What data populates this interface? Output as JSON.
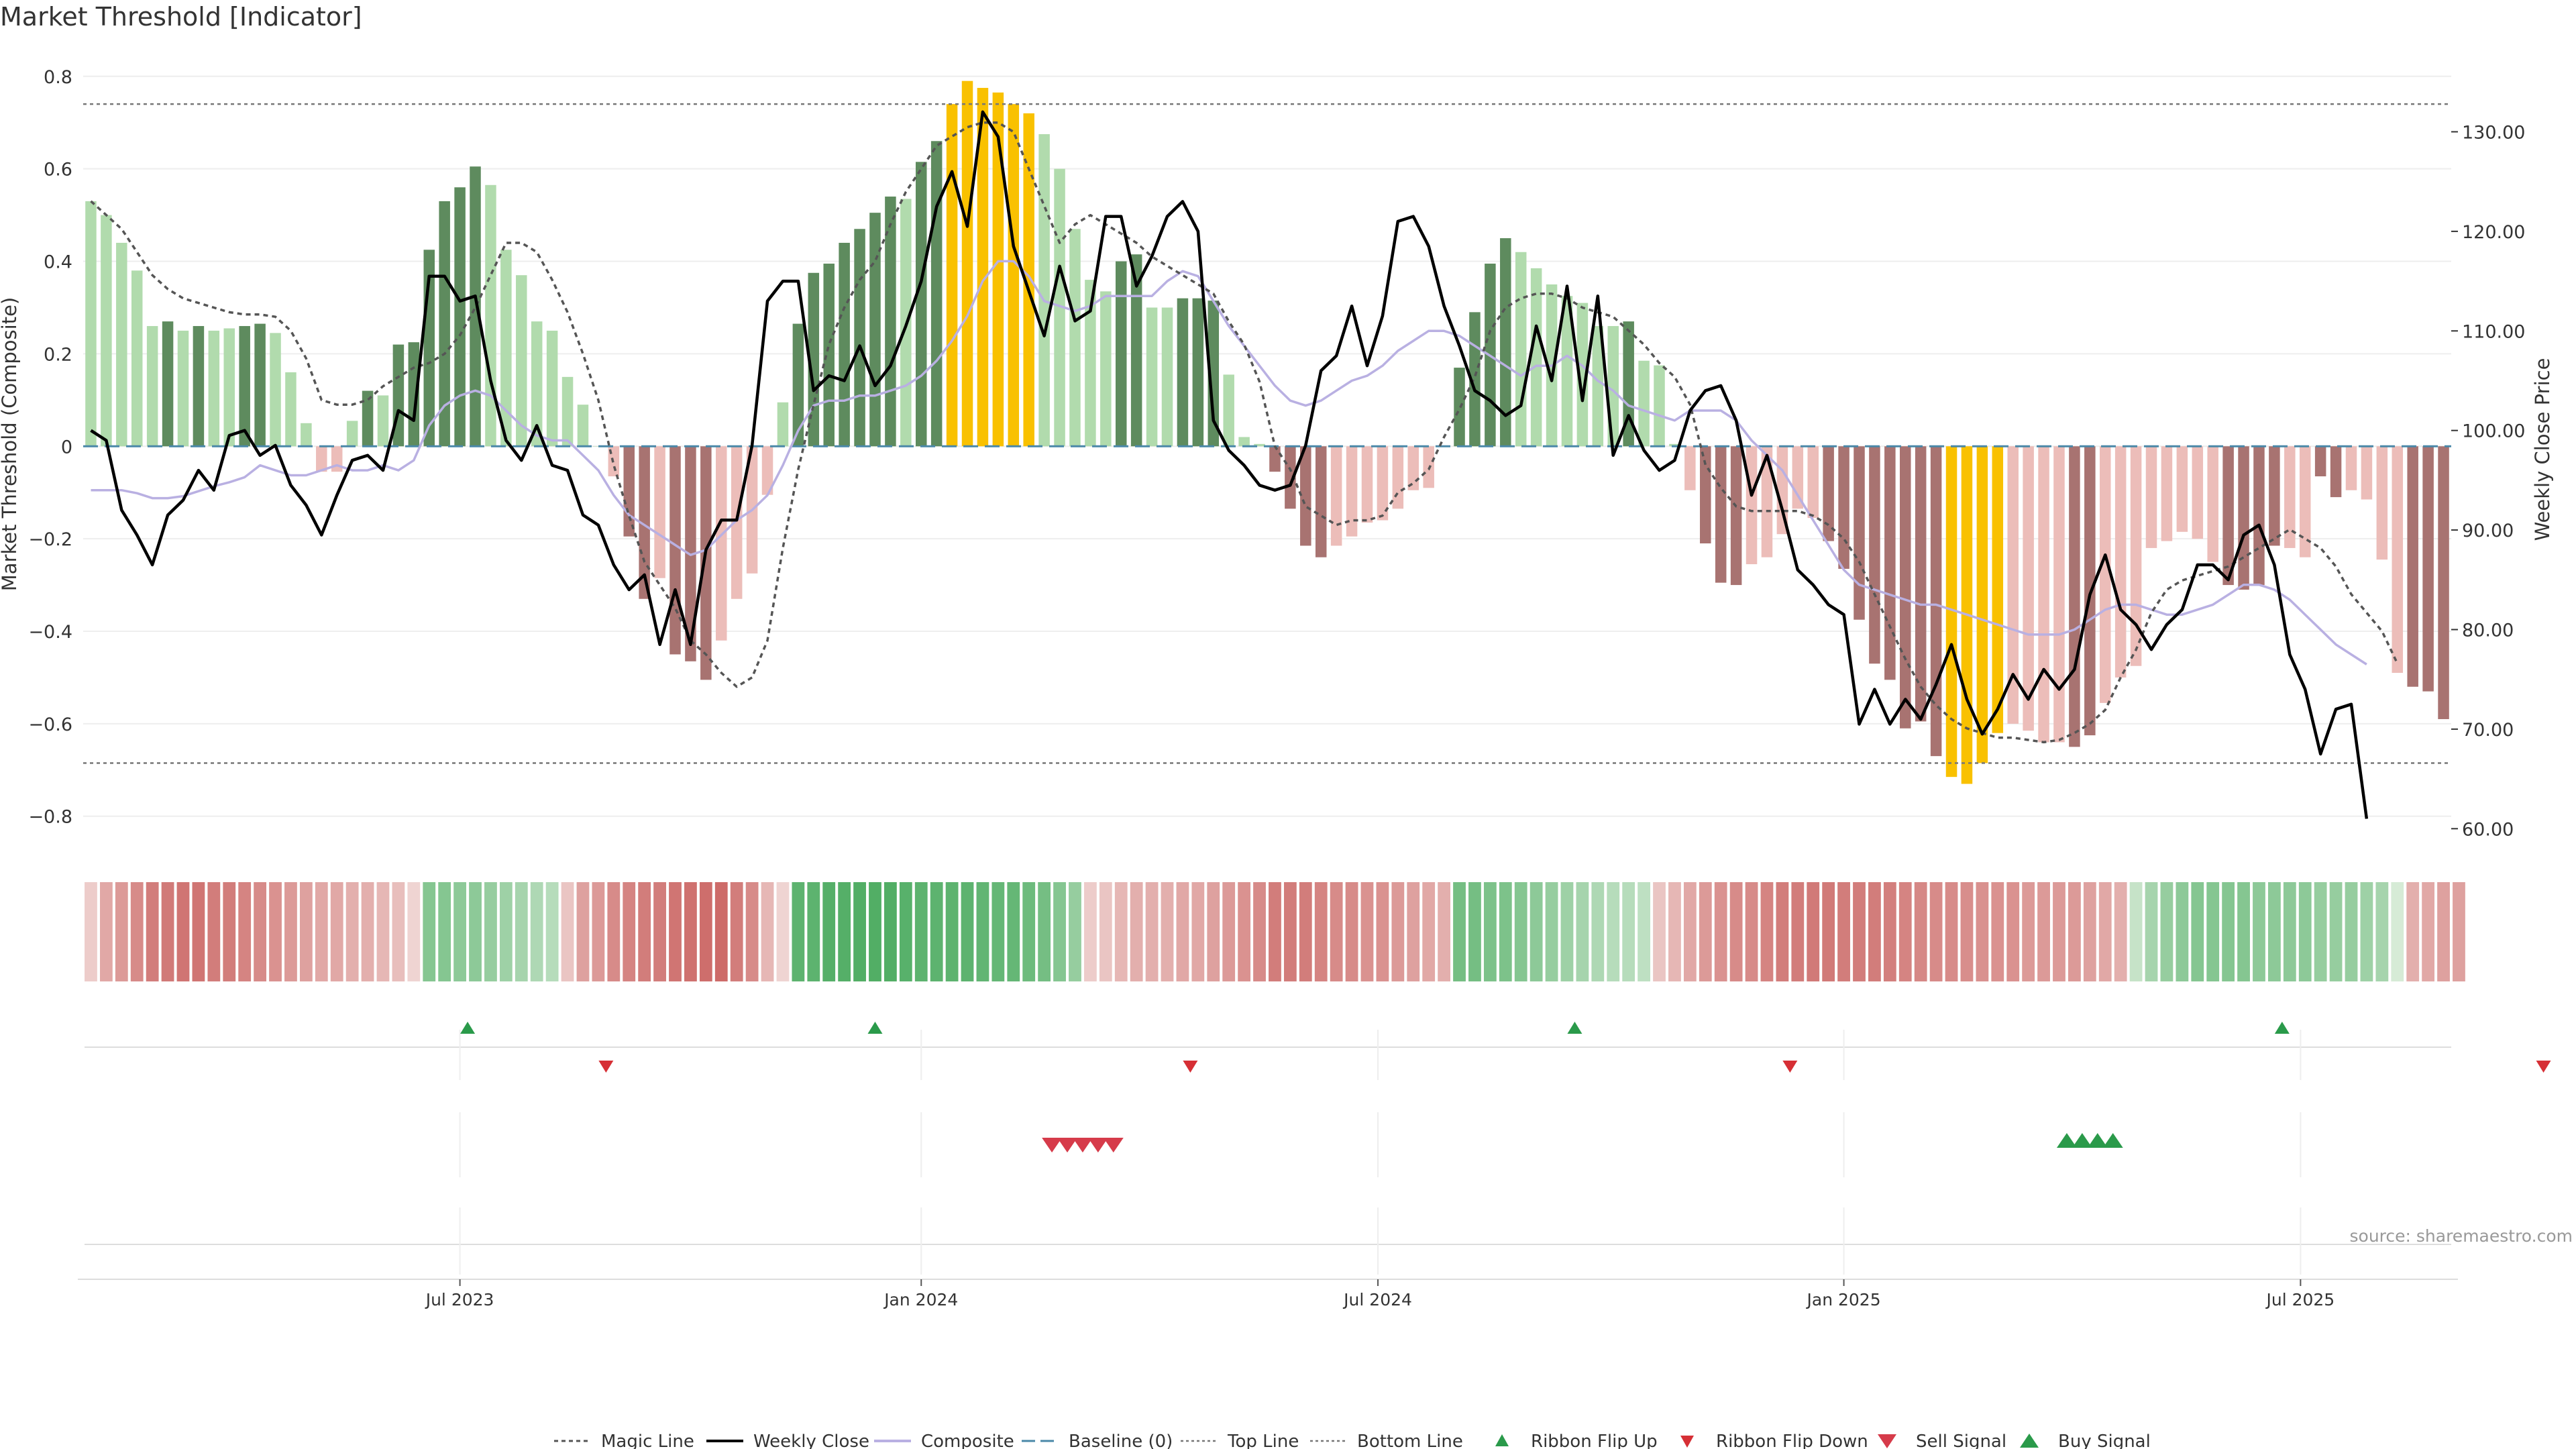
{
  "chart_data": {
    "type": "bar",
    "title": "Market Threshold [Indicator]",
    "ylabel_left": "Market Threshold (Composite)",
    "ylabel_right": "Weekly Close Price",
    "ylim_left": [
      -0.87,
      0.82
    ],
    "ylim_right": [
      58.0,
      136.5
    ],
    "y_ticks_left": [
      "0.8",
      "0.6",
      "0.4",
      "0.2",
      "0",
      "−0.2",
      "−0.4",
      "−0.6",
      "−0.8"
    ],
    "y_tick_values_left": [
      0.8,
      0.6,
      0.4,
      0.2,
      0,
      -0.2,
      -0.4,
      -0.6,
      -0.8
    ],
    "y_ticks_right": [
      "130.00",
      "120.00",
      "110.00",
      "100.00",
      "90.00",
      "80.00",
      "70.00",
      "60.00"
    ],
    "y_tick_values_right": [
      130,
      120,
      110,
      100,
      90,
      80,
      70,
      60
    ],
    "x_ticks": [
      "Jul 2023",
      "Jan 2024",
      "Jul 2024",
      "Jan 2025",
      "Jul 2025"
    ],
    "x_tick_weeks": [
      24.5,
      54.5,
      84.2,
      114.5,
      144.2
    ],
    "top_line": 0.74,
    "bottom_line": -0.685,
    "composite_bars": [
      0.53,
      0.5,
      0.44,
      0.38,
      0.26,
      0.27,
      0.25,
      0.26,
      0.25,
      0.255,
      0.26,
      0.265,
      0.245,
      0.16,
      0.05,
      -0.055,
      -0.055,
      0.055,
      0.12,
      0.11,
      0.22,
      0.225,
      0.425,
      0.53,
      0.56,
      0.605,
      0.565,
      0.425,
      0.37,
      0.27,
      0.25,
      0.15,
      0.09,
      0.0,
      -0.065,
      -0.195,
      -0.33,
      -0.285,
      -0.45,
      -0.465,
      -0.505,
      -0.42,
      -0.33,
      -0.275,
      -0.105,
      0.095,
      0.265,
      0.375,
      0.395,
      0.44,
      0.47,
      0.505,
      0.54,
      0.535,
      0.615,
      0.66,
      0.74,
      0.79,
      0.775,
      0.765,
      0.74,
      0.72,
      0.675,
      0.6,
      0.47,
      0.36,
      0.335,
      0.4,
      0.415,
      0.3,
      0.3,
      0.32,
      0.32,
      0.315,
      0.155,
      0.02,
      0.005,
      -0.055,
      -0.135,
      -0.215,
      -0.24,
      -0.215,
      -0.195,
      -0.165,
      -0.16,
      -0.135,
      -0.095,
      -0.09,
      0.0,
      0.17,
      0.29,
      0.395,
      0.45,
      0.42,
      0.385,
      0.35,
      0.325,
      0.31,
      0.26,
      0.26,
      0.27,
      0.185,
      0.175,
      0.005,
      -0.095,
      -0.21,
      -0.295,
      -0.3,
      -0.255,
      -0.24,
      -0.19,
      -0.135,
      -0.155,
      -0.205,
      -0.265,
      -0.375,
      -0.47,
      -0.505,
      -0.61,
      -0.595,
      -0.67,
      -0.715,
      -0.73,
      -0.685,
      -0.62,
      -0.6,
      -0.615,
      -0.64,
      -0.64,
      -0.65,
      -0.625,
      -0.555,
      -0.5,
      -0.475,
      -0.22,
      -0.205,
      -0.185,
      -0.2,
      -0.25,
      -0.3,
      -0.31,
      -0.3,
      -0.215,
      -0.22,
      -0.24,
      -0.065,
      -0.11,
      -0.095,
      -0.115,
      -0.245,
      -0.49,
      -0.52,
      -0.53,
      -0.59
    ],
    "bar_colors": [
      "light_green",
      "light_green",
      "light_green",
      "light_green",
      "light_green",
      "dark_green",
      "light_green",
      "dark_green",
      "light_green",
      "light_green",
      "dark_green",
      "dark_green",
      "light_green",
      "light_green",
      "light_green",
      "light_red",
      "light_red",
      "light_green",
      "dark_green",
      "light_green",
      "dark_green",
      "dark_green",
      "dark_green",
      "dark_green",
      "dark_green",
      "dark_green",
      "light_green",
      "light_green",
      "light_green",
      "light_green",
      "light_green",
      "light_green",
      "light_green",
      "light_green",
      "light_red",
      "dark_red",
      "dark_red",
      "light_red",
      "dark_red",
      "dark_red",
      "dark_red",
      "light_red",
      "light_red",
      "light_red",
      "light_red",
      "light_green",
      "dark_green",
      "dark_green",
      "dark_green",
      "dark_green",
      "dark_green",
      "dark_green",
      "dark_green",
      "light_green",
      "dark_green",
      "dark_green",
      "yellow",
      "yellow",
      "yellow",
      "yellow",
      "yellow",
      "yellow",
      "light_green",
      "light_green",
      "light_green",
      "light_green",
      "light_green",
      "dark_green",
      "dark_green",
      "light_green",
      "light_green",
      "dark_green",
      "dark_green",
      "dark_green",
      "light_green",
      "light_green",
      "light_green",
      "dark_red",
      "dark_red",
      "dark_red",
      "dark_red",
      "light_red",
      "light_red",
      "light_red",
      "light_red",
      "light_red",
      "light_red",
      "light_red",
      "light_green",
      "dark_green",
      "dark_green",
      "dark_green",
      "dark_green",
      "light_green",
      "light_green",
      "light_green",
      "light_green",
      "light_green",
      "light_green",
      "light_green",
      "dark_green",
      "light_green",
      "light_green",
      "light_green",
      "light_red",
      "dark_red",
      "dark_red",
      "dark_red",
      "light_red",
      "light_red",
      "light_red",
      "light_red",
      "light_red",
      "dark_red",
      "dark_red",
      "dark_red",
      "dark_red",
      "dark_red",
      "dark_red",
      "dark_red",
      "dark_red",
      "yellow",
      "yellow",
      "yellow",
      "yellow",
      "light_red",
      "light_red",
      "light_red",
      "light_red",
      "dark_red",
      "dark_red",
      "light_red",
      "light_red",
      "light_red",
      "light_red",
      "light_red",
      "light_red",
      "light_red",
      "light_red",
      "dark_red",
      "dark_red",
      "dark_red",
      "dark_red",
      "light_red",
      "light_red",
      "dark_red",
      "dark_red",
      "light_red",
      "light_red",
      "light_red",
      "light_red",
      "dark_red",
      "dark_red",
      "dark_red",
      "dark_red",
      "dark_red"
    ],
    "series": [
      {
        "name": "Weekly Close",
        "axis": "right",
        "color": "#000000",
        "values": [
          100.0,
          99.0,
          92.0,
          89.5,
          86.5,
          91.5,
          93.0,
          96.0,
          94.0,
          99.5,
          100.0,
          97.5,
          98.5,
          94.5,
          92.5,
          89.5,
          93.5,
          97.0,
          97.5,
          96.0,
          102.0,
          101.0,
          115.5,
          115.5,
          113.0,
          113.5,
          105.0,
          99.0,
          97.0,
          100.5,
          96.5,
          96.0,
          91.5,
          90.5,
          86.5,
          84.0,
          85.5,
          78.5,
          84.0,
          78.5,
          88.0,
          91.0,
          91.0,
          98.5,
          113.0,
          115.0,
          115.0,
          104.0,
          105.5,
          105.0,
          108.5,
          104.5,
          106.5,
          110.5,
          115.0,
          122.5,
          126.0,
          120.5,
          132.0,
          129.5,
          118.5,
          114.0,
          109.5,
          116.5,
          111.0,
          112.0,
          121.5,
          121.5,
          114.5,
          117.5,
          121.5,
          123.0,
          120.0,
          101.0,
          98.0,
          96.5,
          94.5,
          94.0,
          94.5,
          98.5,
          106.0,
          107.5,
          112.5,
          106.5,
          111.5,
          121.0,
          121.5,
          118.5,
          112.5,
          108.5,
          104.0,
          103.0,
          101.5,
          102.5,
          110.5,
          105.0,
          114.5,
          103.0,
          113.5,
          97.5,
          101.5,
          98.0,
          96.0,
          97.0,
          102.0,
          104.0,
          104.5,
          101.0,
          93.5,
          97.5,
          92.0,
          86.0,
          84.5,
          82.5,
          81.5,
          70.5,
          74.0,
          70.5,
          73.0,
          71.0,
          74.5,
          78.5,
          73.0,
          69.5,
          72.0,
          75.5,
          73.0,
          76.0,
          74.0,
          76.0,
          83.5,
          87.5,
          82.0,
          80.5,
          78.0,
          80.5,
          82.0,
          86.5,
          86.5,
          85.0,
          89.5,
          90.5,
          86.5,
          77.5,
          74.0,
          67.5,
          72.0,
          72.5,
          61.0
        ]
      },
      {
        "name": "Composite",
        "axis": "right",
        "color": "#b9b0e2",
        "values": [
          94.0,
          94.0,
          94.0,
          93.7,
          93.2,
          93.2,
          93.4,
          93.9,
          94.4,
          94.8,
          95.3,
          96.5,
          96.0,
          95.5,
          95.5,
          96.0,
          96.5,
          96.0,
          96.0,
          96.5,
          96.0,
          97.0,
          100.5,
          102.5,
          103.5,
          104.0,
          103.5,
          102.0,
          100.5,
          99.5,
          99.0,
          99.0,
          97.5,
          96.0,
          93.5,
          91.5,
          90.5,
          89.5,
          88.5,
          87.5,
          88.0,
          89.5,
          91.0,
          92.0,
          93.5,
          96.5,
          100.0,
          102.5,
          103.0,
          103.0,
          103.5,
          103.5,
          104.0,
          104.5,
          105.5,
          107.0,
          109.0,
          111.5,
          115.0,
          117.0,
          117.0,
          115.5,
          113.0,
          112.5,
          112.0,
          112.5,
          113.5,
          113.5,
          113.5,
          113.5,
          115.0,
          116.0,
          115.5,
          113.0,
          110.5,
          108.5,
          106.5,
          104.5,
          103.0,
          102.5,
          103.0,
          104.0,
          105.0,
          105.5,
          106.5,
          108.0,
          109.0,
          110.0,
          110.0,
          109.5,
          108.5,
          107.5,
          106.5,
          105.5,
          106.5,
          106.5,
          107.5,
          106.5,
          105.0,
          104.0,
          102.5,
          102.0,
          101.5,
          101.0,
          102.0,
          102.0,
          102.0,
          101.0,
          99.0,
          97.5,
          96.0,
          93.5,
          91.0,
          88.5,
          86.0,
          84.5,
          84.0,
          83.5,
          83.0,
          82.5,
          82.5,
          82.0,
          81.5,
          81.0,
          80.5,
          80.0,
          79.5,
          79.5,
          79.5,
          80.0,
          81.0,
          82.0,
          82.5,
          82.5,
          82.0,
          81.5,
          81.5,
          82.0,
          82.5,
          83.5,
          84.5,
          84.5,
          84.0,
          83.0,
          81.5,
          80.0,
          78.5,
          77.5,
          76.5
        ]
      },
      {
        "name": "Magic Line",
        "axis": "left",
        "color": "#555555",
        "values": [
          0.53,
          0.5,
          0.47,
          0.42,
          0.37,
          0.34,
          0.32,
          0.31,
          0.3,
          0.29,
          0.285,
          0.285,
          0.28,
          0.25,
          0.19,
          0.1,
          0.09,
          0.09,
          0.1,
          0.13,
          0.15,
          0.17,
          0.18,
          0.2,
          0.24,
          0.3,
          0.37,
          0.44,
          0.44,
          0.42,
          0.36,
          0.29,
          0.2,
          0.1,
          -0.04,
          -0.15,
          -0.25,
          -0.3,
          -0.35,
          -0.42,
          -0.45,
          -0.49,
          -0.52,
          -0.5,
          -0.42,
          -0.22,
          -0.05,
          0.09,
          0.22,
          0.3,
          0.36,
          0.4,
          0.48,
          0.55,
          0.6,
          0.65,
          0.67,
          0.69,
          0.7,
          0.7,
          0.68,
          0.6,
          0.52,
          0.44,
          0.48,
          0.5,
          0.48,
          0.46,
          0.44,
          0.41,
          0.39,
          0.37,
          0.35,
          0.33,
          0.27,
          0.22,
          0.14,
          0.0,
          -0.05,
          -0.13,
          -0.15,
          -0.17,
          -0.16,
          -0.16,
          -0.15,
          -0.1,
          -0.08,
          -0.05,
          0.02,
          0.08,
          0.15,
          0.25,
          0.3,
          0.32,
          0.33,
          0.33,
          0.32,
          0.3,
          0.29,
          0.28,
          0.25,
          0.22,
          0.18,
          0.15,
          0.09,
          -0.04,
          -0.09,
          -0.13,
          -0.14,
          -0.14,
          -0.14,
          -0.14,
          -0.15,
          -0.17,
          -0.2,
          -0.25,
          -0.32,
          -0.39,
          -0.46,
          -0.52,
          -0.56,
          -0.59,
          -0.61,
          -0.62,
          -0.63,
          -0.63,
          -0.635,
          -0.64,
          -0.635,
          -0.62,
          -0.6,
          -0.57,
          -0.5,
          -0.44,
          -0.36,
          -0.31,
          -0.29,
          -0.28,
          -0.27,
          -0.26,
          -0.24,
          -0.22,
          -0.2,
          -0.18,
          -0.2,
          -0.22,
          -0.26,
          -0.32,
          -0.36,
          -0.4,
          -0.47
        ]
      }
    ],
    "ribbon_values": [
      -0.15,
      -0.4,
      -0.5,
      -0.6,
      -0.7,
      -0.72,
      -0.75,
      -0.75,
      -0.7,
      -0.7,
      -0.65,
      -0.6,
      -0.55,
      -0.5,
      -0.45,
      -0.4,
      -0.4,
      -0.35,
      -0.35,
      -0.3,
      -0.25,
      -0.1,
      0.6,
      0.6,
      0.55,
      0.55,
      0.5,
      0.45,
      0.4,
      0.35,
      0.3,
      -0.2,
      -0.45,
      -0.5,
      -0.6,
      -0.65,
      -0.7,
      -0.7,
      -0.75,
      -0.78,
      -0.8,
      -0.82,
      -0.7,
      -0.6,
      -0.3,
      -0.1,
      0.85,
      0.85,
      0.9,
      0.9,
      0.92,
      0.92,
      0.92,
      0.88,
      0.85,
      0.85,
      0.85,
      0.85,
      0.82,
      0.8,
      0.8,
      0.75,
      0.7,
      0.6,
      0.5,
      -0.15,
      -0.2,
      -0.3,
      -0.35,
      -0.35,
      -0.35,
      -0.4,
      -0.4,
      -0.45,
      -0.5,
      -0.55,
      -0.6,
      -0.7,
      -0.7,
      -0.7,
      -0.65,
      -0.6,
      -0.6,
      -0.55,
      -0.55,
      -0.5,
      -0.45,
      -0.4,
      -0.35,
      0.7,
      0.7,
      0.65,
      0.65,
      0.6,
      0.55,
      0.5,
      0.45,
      0.4,
      0.35,
      0.3,
      0.3,
      0.25,
      -0.2,
      -0.3,
      -0.4,
      -0.5,
      -0.55,
      -0.6,
      -0.6,
      -0.65,
      -0.7,
      -0.7,
      -0.72,
      -0.72,
      -0.7,
      -0.7,
      -0.7,
      -0.68,
      -0.65,
      -0.62,
      -0.6,
      -0.6,
      -0.58,
      -0.56,
      -0.55,
      -0.55,
      -0.5,
      -0.5,
      -0.5,
      -0.5,
      -0.45,
      -0.4,
      -0.35,
      0.2,
      0.4,
      0.5,
      0.55,
      0.6,
      0.6,
      0.6,
      0.6,
      0.55,
      0.55,
      0.55,
      0.55,
      0.5,
      0.5,
      0.5,
      0.45,
      0.4,
      0.1,
      -0.35,
      -0.4,
      -0.45,
      -0.45
    ],
    "ribbon_flip_up_weeks": [
      25,
      51.5,
      97,
      143
    ],
    "ribbon_flip_down_weeks": [
      34,
      72,
      111,
      160
    ],
    "sell_signal_weeks": [
      63,
      64,
      65,
      66,
      67
    ],
    "buy_signal_weeks": [
      129,
      130,
      131,
      132
    ],
    "legend": [
      "Magic Line",
      "Weekly Close",
      "Composite",
      "Baseline (0)",
      "Top Line",
      "Bottom Line",
      "Ribbon Flip Up",
      "Ribbon Flip Down",
      "Sell Signal",
      "Buy Signal"
    ],
    "legend_placement": "bottom-center",
    "source_note": "source: sharemaestro.com",
    "colors": {
      "dark_green": "#5e8b5e",
      "light_green": "#b1dbad",
      "dark_red": "#a87371",
      "light_red": "#ecbdb9",
      "yellow": "#f9c100",
      "weekly_close": "#000000",
      "composite": "#b9b0e2",
      "magic_line": "#555555",
      "baseline": "#4a88a8",
      "threshold_line": "#777777",
      "flip_up": "#2a9a4a",
      "flip_down": "#d62f35",
      "sell_signal": "#d63b4a",
      "buy_signal": "#2a9a4a",
      "grid": "#eeeeee"
    }
  }
}
